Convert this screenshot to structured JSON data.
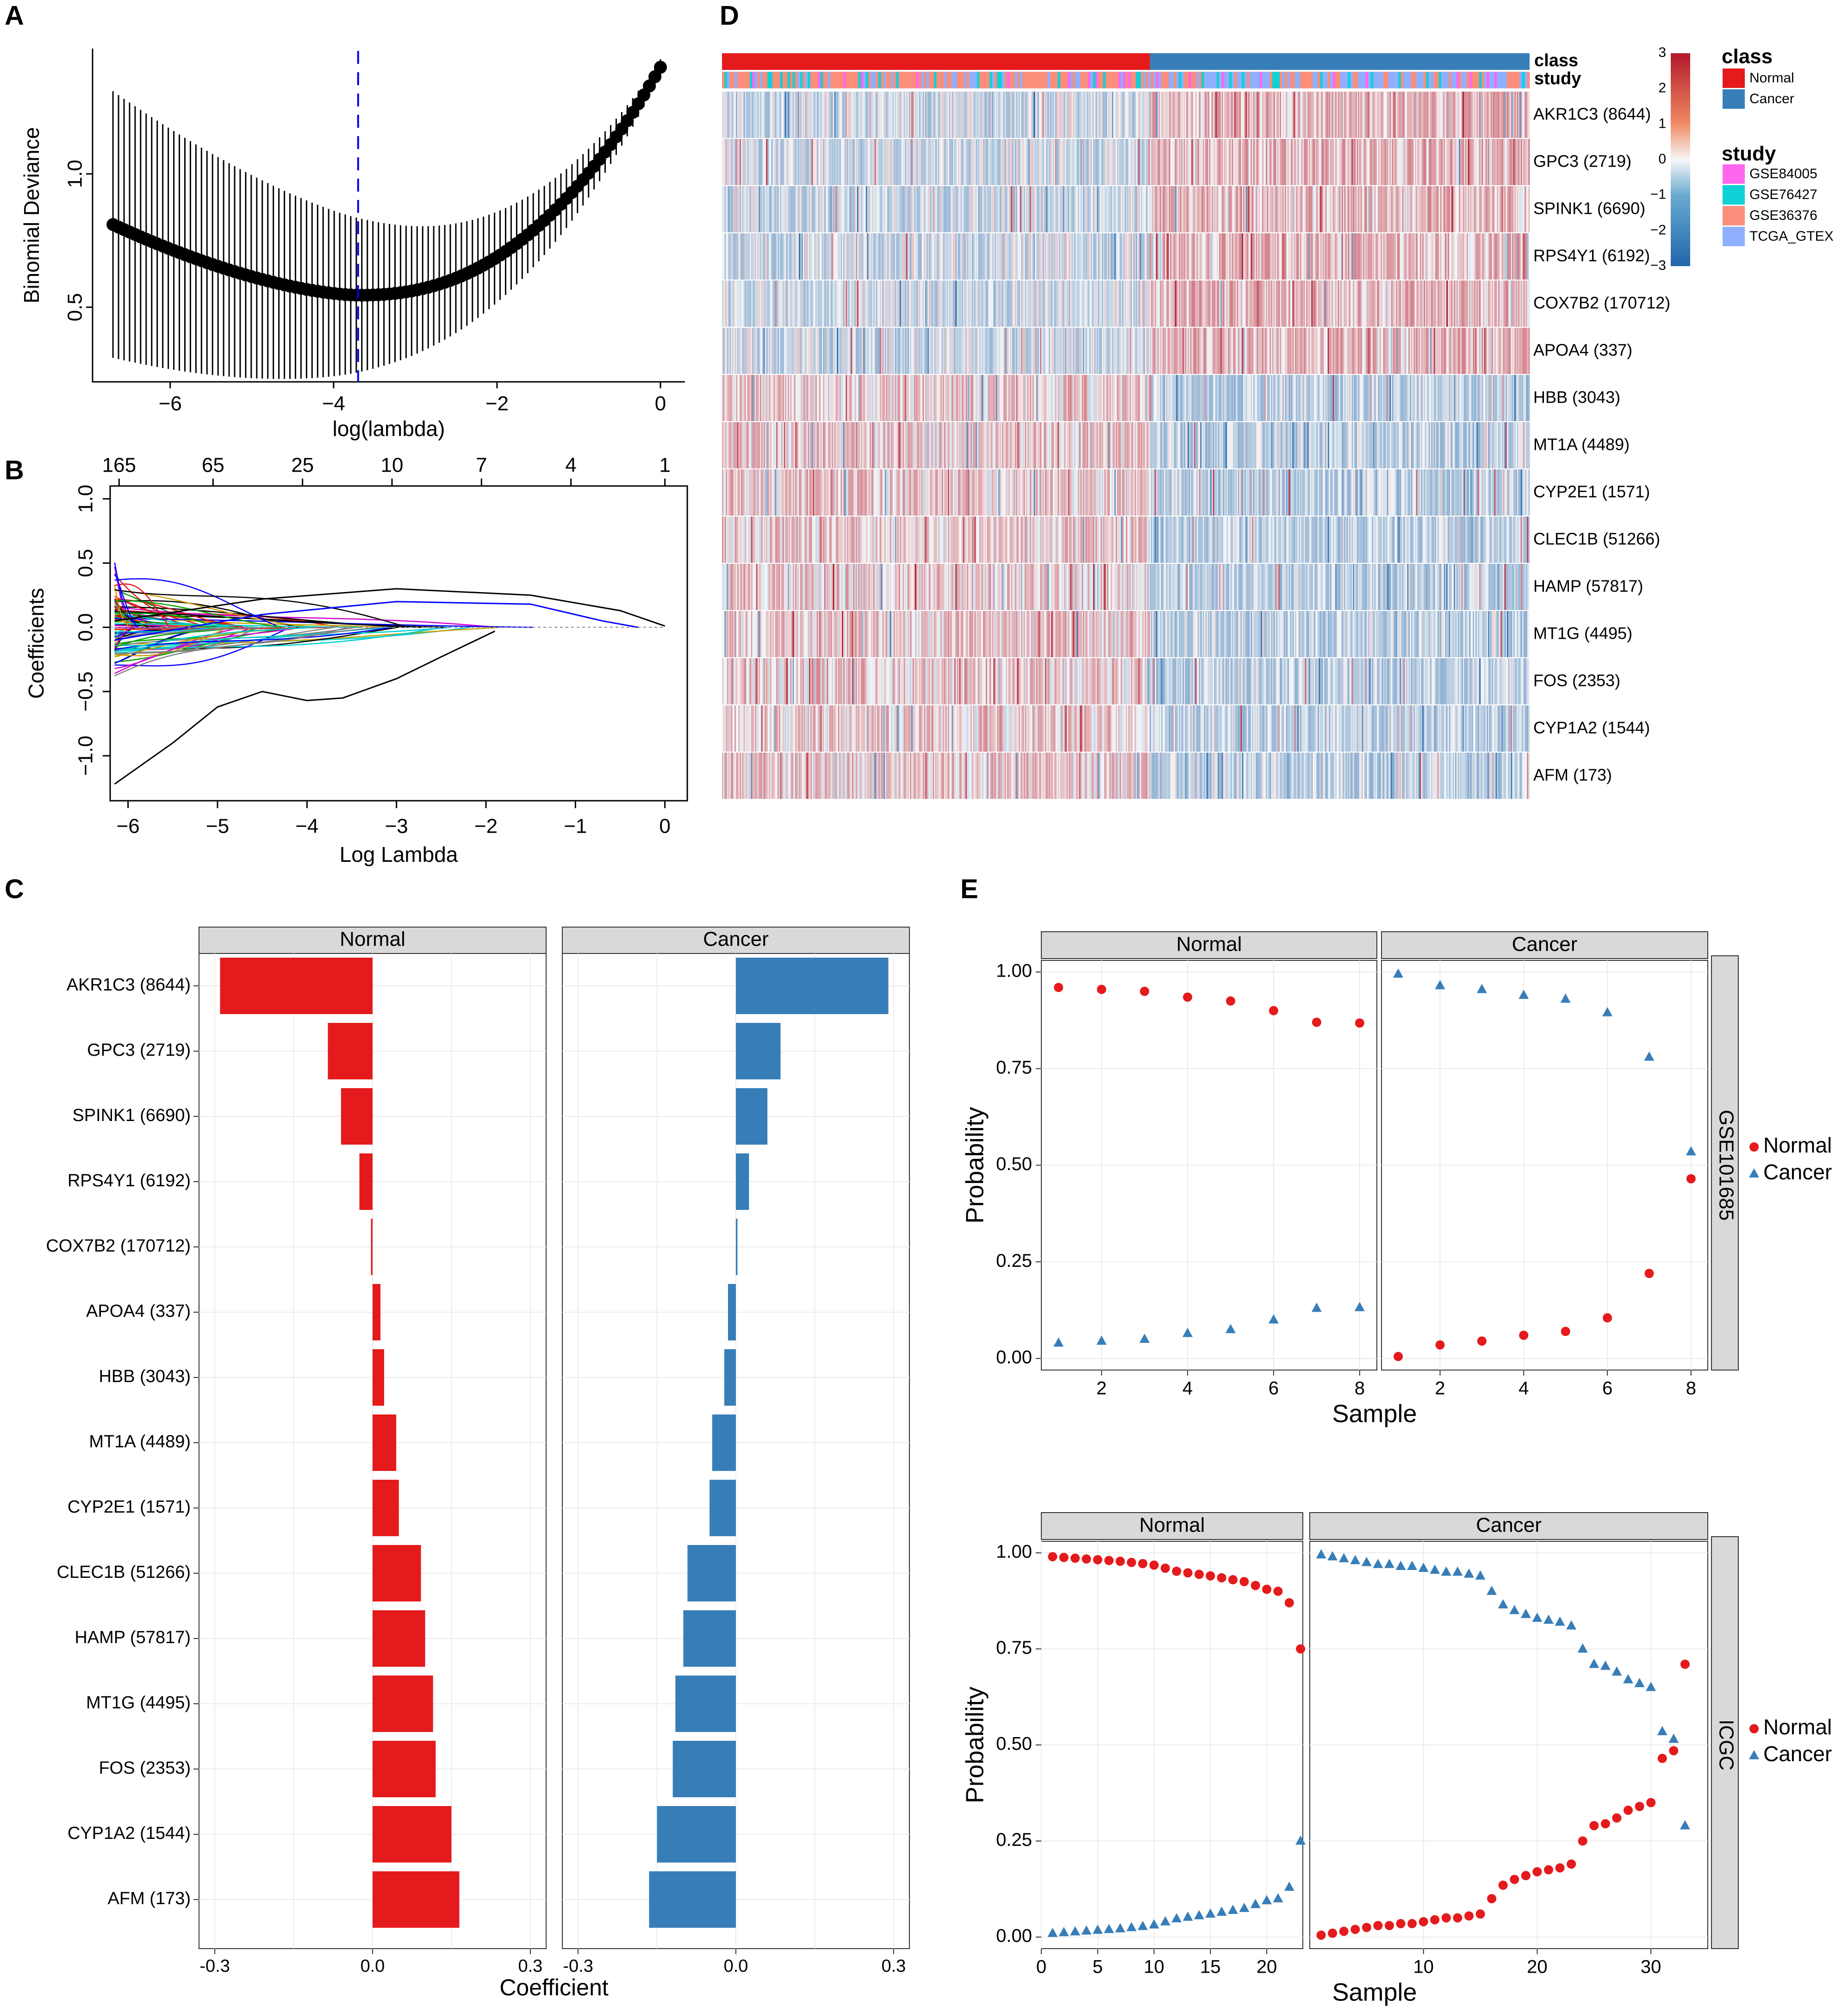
{
  "colors": {
    "normal": "#e41a1c",
    "cancer": "#377eb8",
    "heat_low": "#2f6faf",
    "heat_mid": "#f7f7f7",
    "heat_high": "#b2182b",
    "strip": "#d9d9d9",
    "grid": "#ebebeb",
    "blue_dash": "#0000ee"
  },
  "genes": [
    "AKR1C3 (8644)",
    "GPC3 (2719)",
    "SPINK1 (6690)",
    "RPS4Y1 (6192)",
    "COX7B2 (170712)",
    "APOA4 (337)",
    "HBB (3043)",
    "MT1A (4489)",
    "CYP2E1 (1571)",
    "CLEC1B (51266)",
    "HAMP (57817)",
    "MT1G (4495)",
    "FOS (2353)",
    "CYP1A2 (1544)",
    "AFM (173)"
  ],
  "chart_data": [
    {
      "panel": "A",
      "type": "scatter",
      "title": "",
      "xlabel": "log(lambda)",
      "ylabel": "Binomial Deviance",
      "xlim": [
        -6.95,
        0.3
      ],
      "ylim": [
        0.22,
        1.47
      ],
      "xticks": [
        {
          "v": -6,
          "label": "−6"
        },
        {
          "v": -4,
          "label": "−4"
        },
        {
          "v": -2,
          "label": "−2"
        },
        {
          "v": 0,
          "label": "0"
        }
      ],
      "yticks": [
        {
          "v": 0.5,
          "label": "0.5"
        },
        {
          "v": 1.0,
          "label": "1.0"
        }
      ],
      "lambda_min": -3.7,
      "x_start": -6.7,
      "x_end": 0.0,
      "n_points": 100,
      "y_start": 0.81,
      "y_min": 0.545,
      "y_end": 1.4,
      "lower_bar_start": 0.31,
      "upper_bar_start": 1.31
    },
    {
      "panel": "B",
      "type": "line",
      "xlabel": "Log Lambda",
      "ylabel": "Coefficients",
      "xlim": [
        -6.2,
        0.25
      ],
      "ylim": [
        -1.35,
        1.1
      ],
      "xticks": [
        {
          "v": -6,
          "label": "−6"
        },
        {
          "v": -5,
          "label": "−5"
        },
        {
          "v": -4,
          "label": "−4"
        },
        {
          "v": -3,
          "label": "−3"
        },
        {
          "v": -2,
          "label": "−2"
        },
        {
          "v": -1,
          "label": "−1"
        },
        {
          "v": 0,
          "label": "0"
        }
      ],
      "yticks": [
        {
          "v": -1.0,
          "label": "−1.0"
        },
        {
          "v": -0.5,
          "label": "−0.5"
        },
        {
          "v": 0.0,
          "label": "0.0"
        },
        {
          "v": 0.5,
          "label": "0.5"
        },
        {
          "v": 1.0,
          "label": "1.0"
        }
      ],
      "top_axis": [
        {
          "v": -6.1,
          "label": "165"
        },
        {
          "v": -5.05,
          "label": "65"
        },
        {
          "v": -4.05,
          "label": "25"
        },
        {
          "v": -3.05,
          "label": "10"
        },
        {
          "v": -2.05,
          "label": "7"
        },
        {
          "v": -1.05,
          "label": "4"
        },
        {
          "v": 0,
          "label": "1"
        }
      ],
      "line_colors": [
        "#000000",
        "#e41a1c",
        "#00a000",
        "#0000ff",
        "#00cccc",
        "#d000d0",
        "#c8a000",
        "#808080"
      ]
    },
    {
      "panel": "C",
      "type": "bar",
      "xlabel": "Coefficient",
      "facets": [
        "Normal",
        "Cancer"
      ],
      "xlim": [
        -0.33,
        0.33
      ],
      "xticks": [
        {
          "v": -0.3,
          "label": "-0.3"
        },
        {
          "v": 0,
          "label": "0.0"
        },
        {
          "v": 0.3,
          "label": "0.3"
        }
      ],
      "series": [
        {
          "name": "Normal",
          "values": [
            -0.29,
            -0.085,
            -0.06,
            -0.025,
            -0.003,
            0.015,
            0.022,
            0.045,
            0.05,
            0.092,
            0.1,
            0.115,
            0.12,
            0.15,
            0.165
          ]
        },
        {
          "name": "Cancer",
          "values": [
            0.29,
            0.085,
            0.06,
            0.025,
            0.003,
            -0.015,
            -0.022,
            -0.045,
            -0.05,
            -0.092,
            -0.1,
            -0.115,
            -0.12,
            -0.15,
            -0.165
          ]
        }
      ]
    },
    {
      "panel": "D",
      "type": "heatmap",
      "title": "",
      "n_samples": 640,
      "normal_fraction": 0.53,
      "annotation_rows": [
        "class",
        "study"
      ],
      "scale": {
        "min": -3,
        "max": 3,
        "ticks": [
          "3",
          "2",
          "1",
          "0",
          "−1",
          "−2",
          "−3"
        ]
      },
      "legend_class": {
        "title": "class",
        "items": [
          "Normal",
          "Cancer"
        ]
      },
      "legend_study": {
        "title": "study",
        "items": [
          "GSE84005",
          "GSE76427",
          "GSE36376",
          "TCGA_GTEX"
        ],
        "colors": [
          "#ff66ee",
          "#11d1d6",
          "#fa8e7b",
          "#8fb0ff"
        ]
      },
      "row_direction": [
        1,
        1,
        1,
        1,
        1,
        1,
        -1,
        -1,
        -1,
        -1,
        -1,
        -1,
        -1,
        -1,
        -1
      ]
    },
    {
      "panel": "E1",
      "type": "scatter",
      "xlabel": "Sample",
      "ylabel": "Probability",
      "facets": [
        "Normal",
        "Cancer"
      ],
      "strip": "GSE101685",
      "xlim": [
        0.6,
        8.4
      ],
      "ylim": [
        -0.03,
        1.03
      ],
      "xticks": [
        {
          "v": 2,
          "label": "2"
        },
        {
          "v": 4,
          "label": "4"
        },
        {
          "v": 6,
          "label": "6"
        },
        {
          "v": 8,
          "label": "8"
        }
      ],
      "yticks": [
        {
          "v": 0,
          "label": "0.00"
        },
        {
          "v": 0.25,
          "label": "0.25"
        },
        {
          "v": 0.5,
          "label": "0.50"
        },
        {
          "v": 0.75,
          "label": "0.75"
        },
        {
          "v": 1,
          "label": "1.00"
        }
      ],
      "normal_facet": {
        "x": [
          1,
          2,
          3,
          4,
          5,
          6,
          7,
          8
        ],
        "normal": [
          0.96,
          0.955,
          0.95,
          0.935,
          0.925,
          0.9,
          0.87,
          0.868
        ],
        "cancer": [
          0.04,
          0.045,
          0.05,
          0.065,
          0.075,
          0.1,
          0.13,
          0.132
        ]
      },
      "cancer_facet": {
        "x": [
          1,
          2,
          3,
          4,
          5,
          6,
          7,
          8
        ],
        "normal": [
          0.005,
          0.035,
          0.045,
          0.06,
          0.07,
          0.105,
          0.22,
          0.465
        ],
        "cancer": [
          0.995,
          0.965,
          0.955,
          0.94,
          0.93,
          0.895,
          0.78,
          0.535
        ]
      }
    },
    {
      "panel": "E2",
      "type": "scatter",
      "xlabel": "Sample",
      "ylabel": "Probability",
      "facets": [
        "Normal",
        "Cancer"
      ],
      "strip": "ICGC",
      "facet_xlim": [
        [
          0,
          23.2
        ],
        [
          0,
          35
        ]
      ],
      "ylim": [
        -0.03,
        1.03
      ],
      "xticks_normal": [
        {
          "v": 0,
          "label": "0"
        },
        {
          "v": 5,
          "label": "5"
        },
        {
          "v": 10,
          "label": "10"
        },
        {
          "v": 15,
          "label": "15"
        },
        {
          "v": 20,
          "label": "20"
        }
      ],
      "xticks_cancer": [
        {
          "v": 10,
          "label": "10"
        },
        {
          "v": 20,
          "label": "20"
        },
        {
          "v": 30,
          "label": "30"
        }
      ],
      "yticks": [
        {
          "v": 0,
          "label": "0.00"
        },
        {
          "v": 0.25,
          "label": "0.25"
        },
        {
          "v": 0.5,
          "label": "0.50"
        },
        {
          "v": 0.75,
          "label": "0.75"
        },
        {
          "v": 1,
          "label": "1.00"
        }
      ],
      "normal_facet": {
        "normal": [
          0.99,
          0.988,
          0.986,
          0.984,
          0.982,
          0.98,
          0.978,
          0.975,
          0.972,
          0.968,
          0.96,
          0.952,
          0.948,
          0.944,
          0.94,
          0.935,
          0.93,
          0.925,
          0.915,
          0.905,
          0.9,
          0.87,
          0.75
        ],
        "cancer": [
          0.01,
          0.012,
          0.014,
          0.016,
          0.018,
          0.02,
          0.022,
          0.025,
          0.028,
          0.032,
          0.04,
          0.048,
          0.052,
          0.056,
          0.06,
          0.065,
          0.07,
          0.075,
          0.085,
          0.095,
          0.1,
          0.13,
          0.25
        ]
      },
      "cancer_facet": {
        "normal": [
          0.005,
          0.01,
          0.015,
          0.02,
          0.025,
          0.03,
          0.03,
          0.035,
          0.035,
          0.04,
          0.045,
          0.05,
          0.05,
          0.055,
          0.06,
          0.1,
          0.135,
          0.15,
          0.16,
          0.17,
          0.175,
          0.18,
          0.19,
          0.25,
          0.29,
          0.295,
          0.31,
          0.33,
          0.34,
          0.35,
          0.465,
          0.485,
          0.71
        ],
        "cancer": [
          0.995,
          0.99,
          0.985,
          0.98,
          0.975,
          0.97,
          0.97,
          0.965,
          0.965,
          0.96,
          0.955,
          0.95,
          0.95,
          0.945,
          0.94,
          0.9,
          0.865,
          0.85,
          0.84,
          0.83,
          0.825,
          0.82,
          0.81,
          0.75,
          0.71,
          0.705,
          0.69,
          0.67,
          0.66,
          0.65,
          0.535,
          0.515,
          0.29
        ]
      }
    },
    {
      "legend": [
        "Normal",
        "Cancer"
      ]
    }
  ],
  "labels": {
    "A": "A",
    "B": "B",
    "C": "C",
    "D": "D",
    "E": "E",
    "class": "class",
    "study": "study"
  }
}
